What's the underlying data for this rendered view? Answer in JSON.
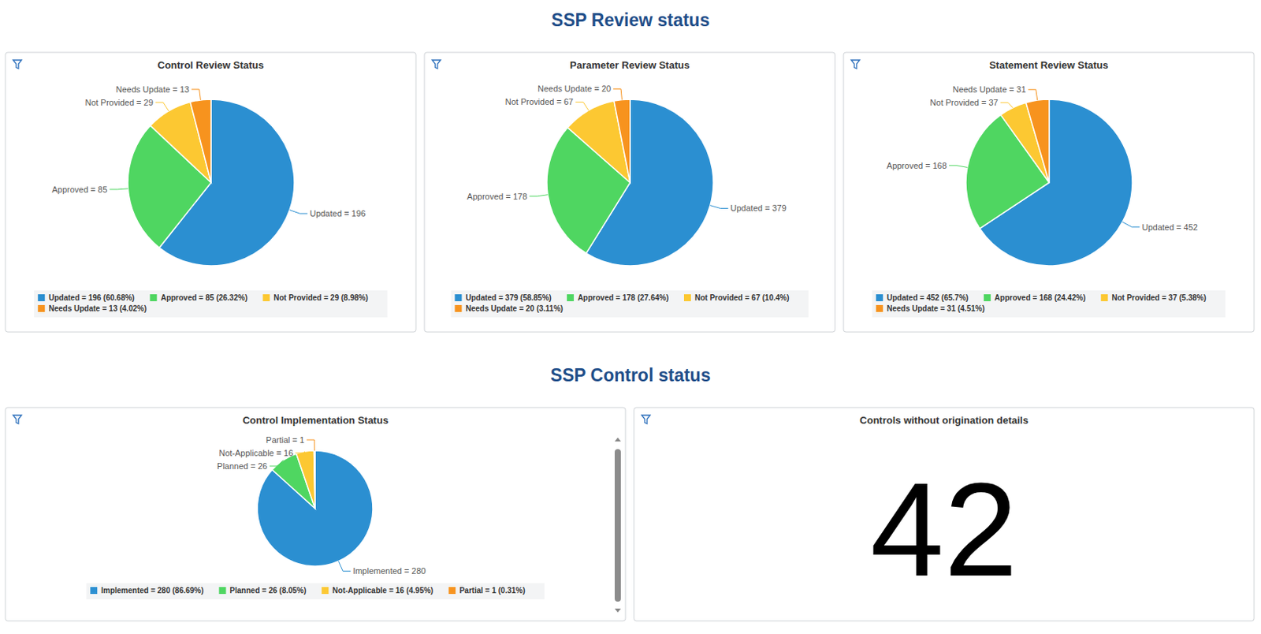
{
  "headings": [
    "SSP Review status",
    "SSP Control status"
  ],
  "chart_data": [
    {
      "type": "pie",
      "title": "Control Review Status",
      "values": [
        196,
        85,
        29,
        13
      ],
      "value_labels": [
        "Updated = 196",
        "Approved = 85",
        "Not Provided = 29",
        "Needs Update = 13"
      ],
      "legend_labels": [
        "Updated = 196 (60.68%)",
        "Approved = 85 (26.32%)",
        "Not Provided = 29 (8.98%)",
        "Needs Update = 13 (4.02%)"
      ],
      "colors": [
        "#2b8fd1",
        "#4fd661",
        "#fcc832",
        "#f7931e"
      ],
      "legend": "bottom",
      "data_labels": true
    },
    {
      "type": "pie",
      "title": "Parameter Review Status",
      "values": [
        379,
        178,
        67,
        20
      ],
      "value_labels": [
        "Updated = 379",
        "Approved = 178",
        "Not Provided = 67",
        "Needs Update = 20"
      ],
      "legend_labels": [
        "Updated = 379 (58.85%)",
        "Approved = 178 (27.64%)",
        "Not Provided = 67 (10.4%)",
        "Needs Update = 20 (3.11%)"
      ],
      "colors": [
        "#2b8fd1",
        "#4fd661",
        "#fcc832",
        "#f7931e"
      ],
      "legend": "bottom",
      "data_labels": true
    },
    {
      "type": "pie",
      "title": "Statement Review Status",
      "values": [
        452,
        168,
        37,
        31
      ],
      "value_labels": [
        "Updated = 452",
        "Approved = 168",
        "Not Provided = 37",
        "Needs Update = 31"
      ],
      "legend_labels": [
        "Updated = 452 (65.7%)",
        "Approved = 168 (24.42%)",
        "Not Provided = 37 (5.38%)",
        "Needs Update = 31 (4.51%)"
      ],
      "colors": [
        "#2b8fd1",
        "#4fd661",
        "#fcc832",
        "#f7931e"
      ],
      "legend": "bottom",
      "data_labels": true
    },
    {
      "type": "pie",
      "title": "Control Implementation Status",
      "values": [
        280,
        26,
        16,
        1
      ],
      "value_labels": [
        "Implemented = 280",
        "Planned = 26",
        "Not-Applicable = 16",
        "Partial = 1"
      ],
      "legend_labels": [
        "Implemented = 280 (86.69%)",
        "Planned = 26 (8.05%)",
        "Not-Applicable = 16 (4.95%)",
        "Partial = 1 (0.31%)"
      ],
      "colors": [
        "#2b8fd1",
        "#4fd661",
        "#fcc832",
        "#f7931e"
      ],
      "legend": "bottom",
      "data_labels": true
    }
  ],
  "kpi": {
    "title": "Controls without origination details",
    "value": 42
  }
}
